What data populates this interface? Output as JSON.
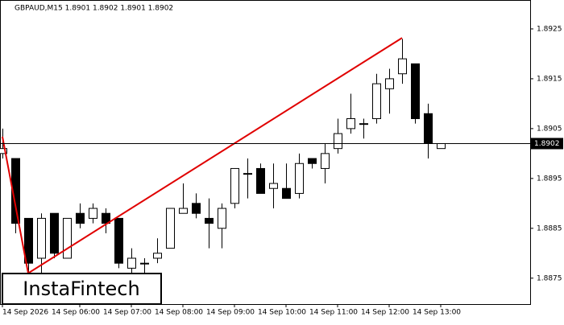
{
  "chart_data": {
    "type": "candlestick",
    "title": "GBPAUD,M15  1.8901 1.8902 1.8901 1.8902",
    "categories": [
      "14 Sep 2026",
      null,
      null,
      null,
      null,
      null,
      "14 Sep 06:00",
      null,
      null,
      null,
      "14 Sep 07:00",
      null,
      null,
      null,
      "14 Sep 08:00",
      null,
      null,
      null,
      "14 Sep 09:00",
      null,
      null,
      null,
      "14 Sep 10:00",
      null,
      null,
      null,
      "14 Sep 11:00",
      null,
      null,
      null,
      "14 Sep 12:00",
      null,
      null,
      null,
      "14 Sep 13:00"
    ],
    "open": [
      1.89,
      1.8899,
      1.8887,
      1.8879,
      1.8888,
      1.8879,
      1.8888,
      1.8887,
      1.8888,
      1.8887,
      1.8877,
      1.8878,
      1.8879,
      1.8881,
      1.8888,
      1.889,
      1.8887,
      1.8885,
      1.889,
      1.8896,
      1.8897,
      1.8893,
      1.8893,
      1.8892,
      1.8899,
      1.8897,
      1.8901,
      1.8905,
      1.8906,
      1.8907,
      1.8913,
      1.8916,
      1.8918,
      1.8908,
      1.8901
    ],
    "high": [
      1.8905,
      1.8899,
      1.8887,
      1.8888,
      1.8888,
      1.8887,
      1.889,
      1.889,
      1.8889,
      1.8887,
      1.8881,
      1.8879,
      1.8883,
      1.8889,
      1.8894,
      1.8892,
      1.8891,
      1.889,
      1.8897,
      1.8899,
      1.8898,
      1.8898,
      1.8898,
      1.89,
      1.8899,
      1.8902,
      1.8907,
      1.8912,
      1.8907,
      1.8916,
      1.8917,
      1.8923,
      1.8918,
      1.891,
      1.8902
    ],
    "low": [
      1.8899,
      1.8884,
      1.8876,
      1.8876,
      1.8879,
      1.8879,
      1.8885,
      1.8886,
      1.8884,
      1.8877,
      1.8875,
      1.8876,
      1.8878,
      1.8881,
      1.8888,
      1.8887,
      1.8881,
      1.8881,
      1.8889,
      1.8891,
      1.8892,
      1.8889,
      1.8891,
      1.8891,
      1.8897,
      1.8894,
      1.89,
      1.8904,
      1.8903,
      1.8906,
      1.8908,
      1.8914,
      1.8906,
      1.8899,
      1.8901
    ],
    "close": [
      1.8901,
      1.8886,
      1.8878,
      1.8887,
      1.888,
      1.8887,
      1.8886,
      1.8889,
      1.8886,
      1.8878,
      1.8879,
      1.8878,
      1.888,
      1.8889,
      1.8889,
      1.8888,
      1.8886,
      1.8889,
      1.8897,
      1.8896,
      1.8892,
      1.8894,
      1.8891,
      1.8898,
      1.8898,
      1.89,
      1.8904,
      1.8907,
      1.8906,
      1.8914,
      1.8915,
      1.8919,
      1.8907,
      1.8902,
      1.8902
    ],
    "up_color": "#ffffff",
    "down_color": "#000000",
    "ylim": [
      1.88698,
      1.89308
    ],
    "yticks": [
      1.8875,
      1.8885,
      1.8895,
      1.8905,
      1.8915,
      1.8925
    ],
    "last_price": {
      "value": 1.8902,
      "label": "1.8902"
    },
    "overlay_line": {
      "color": "#e00000",
      "x": [
        0,
        2,
        31
      ],
      "values": [
        1.89034,
        1.8876,
        1.89232
      ]
    },
    "logo": "InstaFintech"
  }
}
